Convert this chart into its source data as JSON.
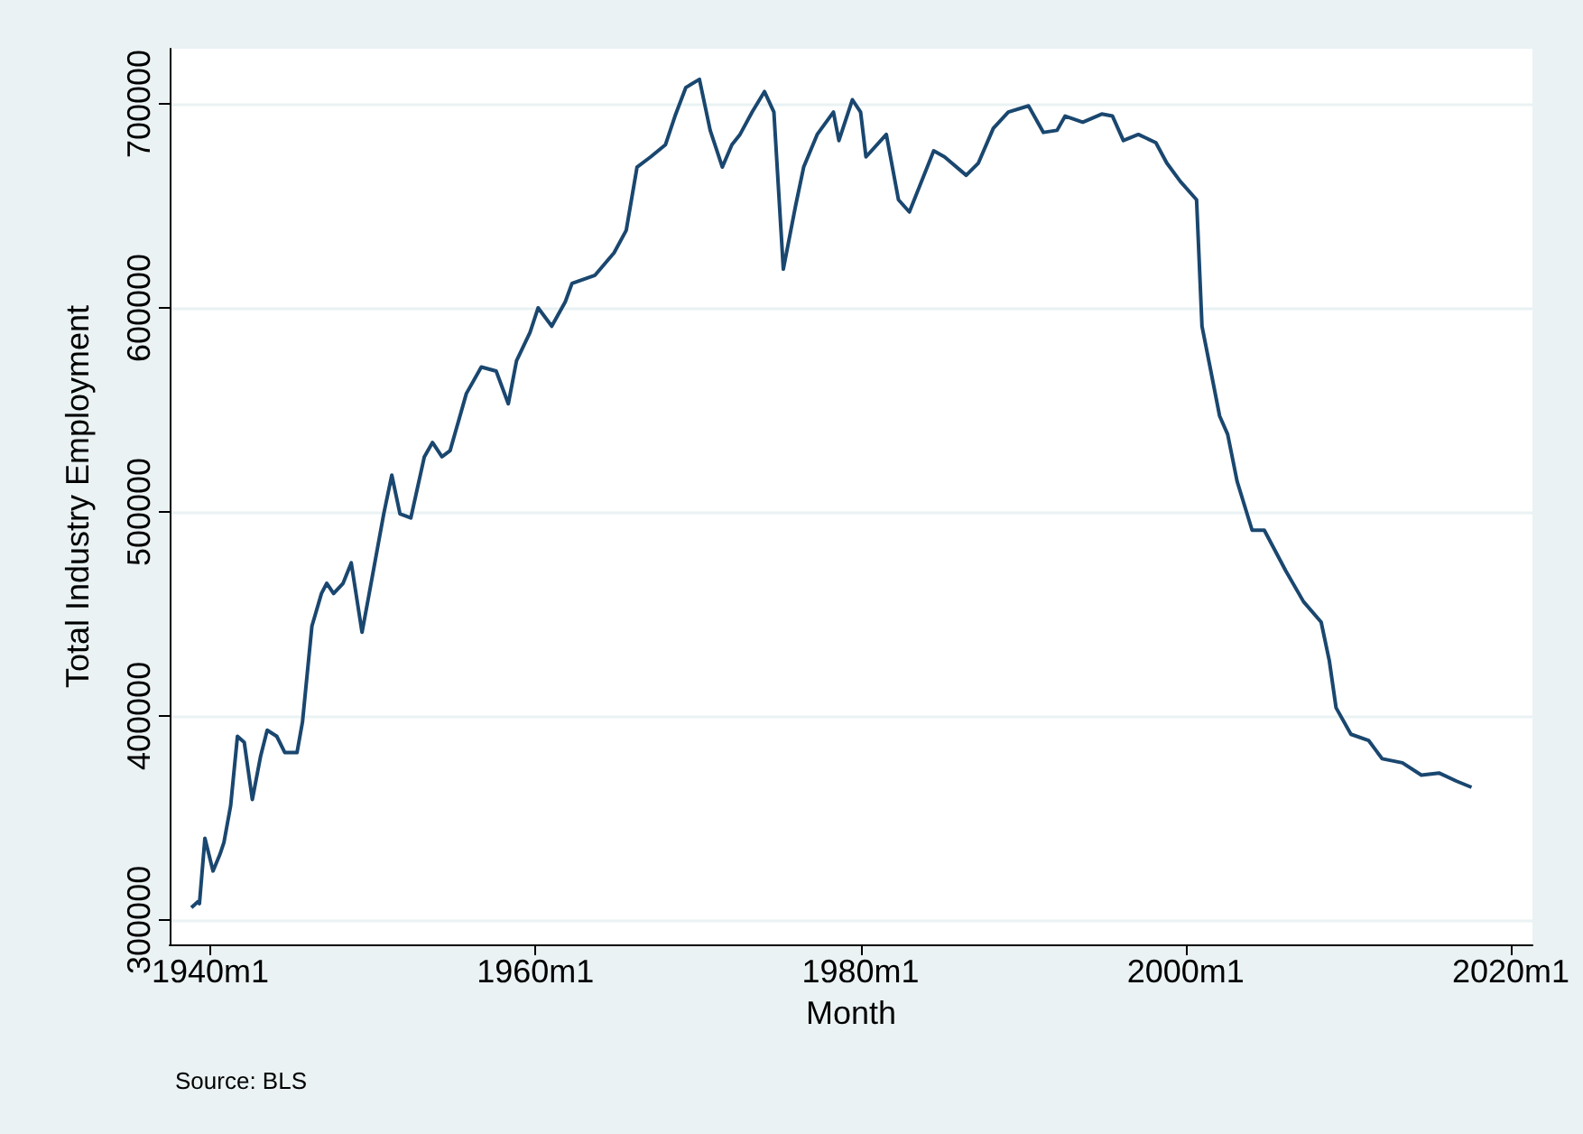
{
  "chart_data": {
    "type": "line",
    "xlabel": "Month",
    "ylabel": "Total Industry Employment",
    "annotations": [
      "Source: BLS"
    ],
    "xlim": [
      "1937-07",
      "2021-05"
    ],
    "ylim": [
      288000,
      727000
    ],
    "xticks": [
      {
        "value": "1940-01",
        "label": "1940m1"
      },
      {
        "value": "1960-01",
        "label": "1960m1"
      },
      {
        "value": "1980-01",
        "label": "1980m1"
      },
      {
        "value": "2000-01",
        "label": "2000m1"
      },
      {
        "value": "2020-01",
        "label": "2020m1"
      }
    ],
    "yticks": [
      300000,
      400000,
      500000,
      600000,
      700000
    ],
    "grid": "y",
    "marker": "none",
    "line_style": "solid",
    "series": [
      {
        "color": "#1a476f",
        "x": [
          "1938-11",
          "1939-04",
          "1939-05",
          "1939-09",
          "1940-03",
          "1940-08",
          "1940-11",
          "1941-04",
          "1941-09",
          "1942-02",
          "1942-08",
          "1943-02",
          "1943-07",
          "1944-02",
          "1944-08",
          "1945-05",
          "1945-09",
          "1946-04",
          "1946-11",
          "1947-03",
          "1947-08",
          "1948-03",
          "1948-09",
          "1949-05",
          "1949-10",
          "1950-09",
          "1951-03",
          "1951-09",
          "1952-05",
          "1953-03",
          "1953-09",
          "1954-04",
          "1954-10",
          "1955-10",
          "1956-09",
          "1957-08",
          "1958-05",
          "1958-11",
          "1959-09",
          "1960-03",
          "1961-01",
          "1961-11",
          "1962-04",
          "1963-09",
          "1964-11",
          "1965-08",
          "1966-04",
          "1967-02",
          "1968-01",
          "1968-08",
          "1969-04",
          "1970-02",
          "1970-10",
          "1971-07",
          "1972-02",
          "1972-08",
          "1973-05",
          "1974-02",
          "1974-09",
          "1975-04",
          "1976-01",
          "1976-07",
          "1977-05",
          "1978-05",
          "1978-09",
          "1979-07",
          "1980-01",
          "1980-05",
          "1981-08",
          "1982-05",
          "1983-01",
          "1984-07",
          "1985-03",
          "1986-07",
          "1987-04",
          "1988-03",
          "1989-02",
          "1990-05",
          "1991-04",
          "1992-02",
          "1992-08",
          "1993-09",
          "1994-11",
          "1995-07",
          "1996-03",
          "1997-02",
          "1998-03",
          "1998-11",
          "1999-09",
          "2000-09",
          "2001-01",
          "2001-07",
          "2002-02",
          "2002-08",
          "2003-03",
          "2004-02",
          "2004-11",
          "2006-03",
          "2007-04",
          "2008-05",
          "2008-11",
          "2009-04",
          "2010-03",
          "2011-04",
          "2012-02",
          "2013-05",
          "2014-07",
          "2015-08",
          "2016-09",
          "2017-08"
        ],
        "values": [
          306000,
          309000,
          308000,
          340000,
          324000,
          332000,
          338000,
          356000,
          390000,
          387000,
          359000,
          380000,
          393000,
          390000,
          382000,
          382000,
          397000,
          444000,
          460000,
          465000,
          460000,
          465000,
          475000,
          441000,
          459000,
          499000,
          518000,
          499000,
          497000,
          527000,
          534000,
          527000,
          530000,
          558000,
          571000,
          569000,
          553000,
          574000,
          588000,
          600000,
          591000,
          603000,
          612000,
          616000,
          627000,
          638000,
          669000,
          674000,
          680000,
          694000,
          708000,
          712000,
          687000,
          669000,
          680000,
          685000,
          696000,
          706000,
          696000,
          619000,
          650000,
          669000,
          685000,
          696000,
          682000,
          702000,
          696000,
          674000,
          685000,
          653000,
          647000,
          677000,
          674000,
          665000,
          671000,
          688000,
          696000,
          699000,
          686000,
          687000,
          694000,
          691000,
          695000,
          694000,
          682000,
          685000,
          681000,
          671000,
          662000,
          653000,
          591000,
          571000,
          547000,
          538000,
          515000,
          491000,
          491000,
          471000,
          456000,
          446000,
          427000,
          404000,
          391000,
          388000,
          379000,
          377000,
          371000,
          372000,
          368000,
          365000
        ]
      }
    ]
  }
}
